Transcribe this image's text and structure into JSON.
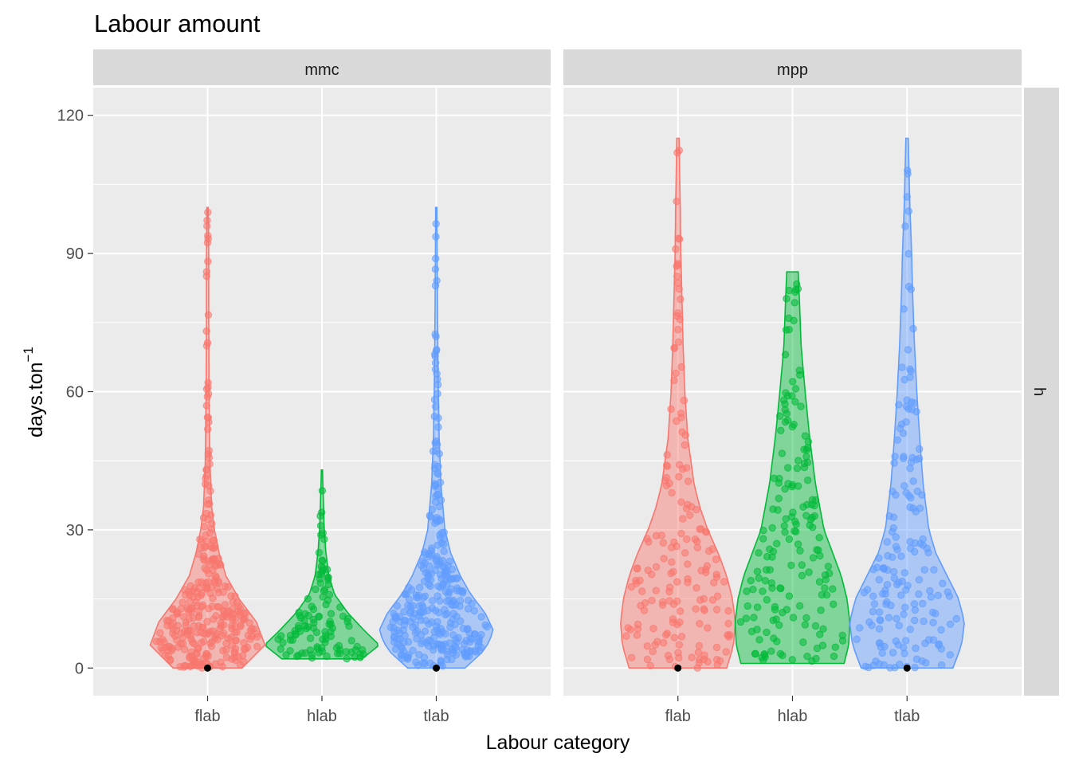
{
  "chart_data": {
    "type": "violin",
    "title": "Labour amount",
    "xlabel": "Labour category",
    "ylabel": "days.ton",
    "ylabel_superscript": "−1",
    "ylim": [
      -6,
      126
    ],
    "yticks": [
      0,
      30,
      60,
      90,
      120
    ],
    "categories": [
      "flab",
      "hlab",
      "tlab"
    ],
    "row_strip": "h",
    "grid": true,
    "legend": "none",
    "colors": {
      "flab": "#F8766D",
      "hlab": "#00BA38",
      "tlab": "#619CFF",
      "median_point": "#000000"
    },
    "panels": [
      {
        "label": "mmc",
        "series": [
          {
            "name": "flab",
            "min": 0,
            "max": 100,
            "median": 0,
            "density": [
              [
                0,
                0.6
              ],
              [
                5,
                1.0
              ],
              [
                10,
                0.85
              ],
              [
                15,
                0.55
              ],
              [
                20,
                0.32
              ],
              [
                25,
                0.2
              ],
              [
                30,
                0.12
              ],
              [
                35,
                0.07
              ],
              [
                45,
                0.04
              ],
              [
                60,
                0.025
              ],
              [
                75,
                0.02
              ],
              [
                90,
                0.02
              ],
              [
                100,
                0.01
              ]
            ]
          },
          {
            "name": "hlab",
            "min": 2,
            "max": 43,
            "median": null,
            "density": [
              [
                2,
                0.7
              ],
              [
                5,
                1.0
              ],
              [
                8,
                0.75
              ],
              [
                12,
                0.45
              ],
              [
                16,
                0.22
              ],
              [
                20,
                0.12
              ],
              [
                25,
                0.07
              ],
              [
                30,
                0.04
              ],
              [
                36,
                0.025
              ],
              [
                43,
                0.01
              ]
            ]
          },
          {
            "name": "tlab",
            "min": 0,
            "max": 100,
            "median": 0,
            "density": [
              [
                0,
                0.5
              ],
              [
                4,
                0.85
              ],
              [
                8,
                1.0
              ],
              [
                12,
                0.85
              ],
              [
                16,
                0.6
              ],
              [
                20,
                0.42
              ],
              [
                25,
                0.25
              ],
              [
                30,
                0.15
              ],
              [
                40,
                0.08
              ],
              [
                50,
                0.05
              ],
              [
                65,
                0.03
              ],
              [
                80,
                0.02
              ],
              [
                100,
                0.01
              ]
            ]
          }
        ]
      },
      {
        "label": "mpp",
        "series": [
          {
            "name": "flab",
            "min": 0,
            "max": 115,
            "median": 0,
            "density": [
              [
                0,
                0.85
              ],
              [
                5,
                0.97
              ],
              [
                10,
                1.0
              ],
              [
                15,
                0.95
              ],
              [
                20,
                0.85
              ],
              [
                25,
                0.7
              ],
              [
                30,
                0.52
              ],
              [
                35,
                0.38
              ],
              [
                40,
                0.28
              ],
              [
                50,
                0.17
              ],
              [
                60,
                0.12
              ],
              [
                70,
                0.09
              ],
              [
                80,
                0.07
              ],
              [
                90,
                0.05
              ],
              [
                100,
                0.04
              ],
              [
                115,
                0.02
              ]
            ]
          },
          {
            "name": "hlab",
            "min": 1,
            "max": 86,
            "median": null,
            "density": [
              [
                1,
                0.9
              ],
              [
                5,
                0.98
              ],
              [
                10,
                1.0
              ],
              [
                15,
                0.95
              ],
              [
                20,
                0.85
              ],
              [
                25,
                0.7
              ],
              [
                30,
                0.55
              ],
              [
                40,
                0.4
              ],
              [
                50,
                0.3
              ],
              [
                60,
                0.22
              ],
              [
                70,
                0.15
              ],
              [
                80,
                0.12
              ],
              [
                86,
                0.1
              ]
            ]
          },
          {
            "name": "tlab",
            "min": 0,
            "max": 115,
            "median": 0,
            "density": [
              [
                0,
                0.8
              ],
              [
                5,
                0.95
              ],
              [
                10,
                1.0
              ],
              [
                15,
                0.9
              ],
              [
                20,
                0.7
              ],
              [
                25,
                0.5
              ],
              [
                30,
                0.38
              ],
              [
                40,
                0.28
              ],
              [
                50,
                0.22
              ],
              [
                60,
                0.17
              ],
              [
                70,
                0.13
              ],
              [
                80,
                0.1
              ],
              [
                90,
                0.08
              ],
              [
                100,
                0.05
              ],
              [
                115,
                0.02
              ]
            ]
          }
        ]
      }
    ]
  }
}
